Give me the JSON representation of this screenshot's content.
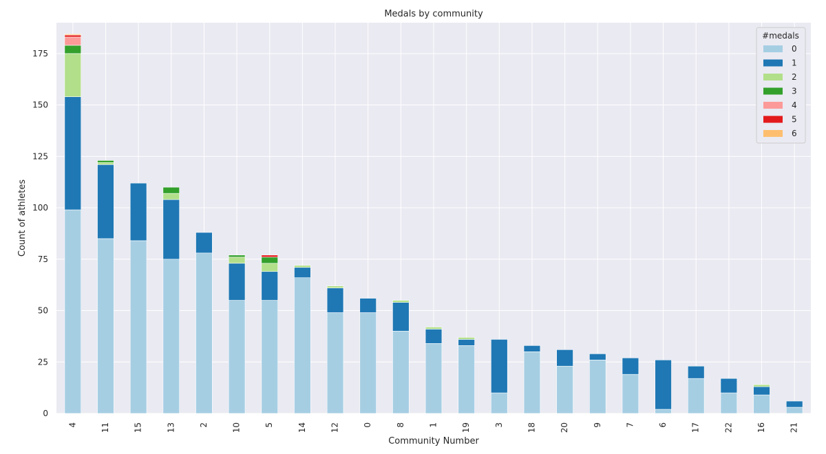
{
  "chart_data": {
    "type": "bar",
    "stacked": true,
    "title": "Medals by community",
    "xlabel": "Community Number",
    "ylabel": "Count of athletes",
    "ylim": [
      0,
      190
    ],
    "yticks": [
      0,
      25,
      50,
      75,
      100,
      125,
      150,
      175
    ],
    "grid": true,
    "legend": {
      "title": "#medals",
      "placement": "top-right"
    },
    "categories": [
      "4",
      "11",
      "15",
      "13",
      "2",
      "10",
      "5",
      "14",
      "12",
      "0",
      "8",
      "1",
      "19",
      "3",
      "18",
      "20",
      "9",
      "7",
      "6",
      "17",
      "22",
      "16",
      "21"
    ],
    "series": [
      {
        "name": "0",
        "color": "#a6cee3",
        "values": [
          99,
          85,
          84,
          75,
          78,
          55,
          55,
          66,
          49,
          49,
          40,
          34,
          33,
          10,
          30,
          23,
          26,
          19,
          2,
          17,
          10,
          9,
          3
        ]
      },
      {
        "name": "1",
        "color": "#1f78b4",
        "values": [
          55,
          36,
          28,
          29,
          10,
          18,
          14,
          5,
          12,
          7,
          14,
          7,
          3,
          26,
          3,
          8,
          3,
          8,
          24,
          6,
          7,
          4,
          3
        ]
      },
      {
        "name": "2",
        "color": "#b2df8a",
        "values": [
          21,
          1,
          0,
          3,
          0,
          3,
          4,
          1,
          1,
          0,
          1,
          1,
          1,
          0,
          0,
          0,
          0,
          0,
          0,
          0,
          0,
          1,
          0
        ]
      },
      {
        "name": "3",
        "color": "#33a02c",
        "values": [
          4,
          1,
          0,
          3,
          0,
          1,
          3,
          0,
          0,
          0,
          0,
          0,
          0,
          0,
          0,
          0,
          0,
          0,
          0,
          0,
          0,
          0,
          0
        ]
      },
      {
        "name": "4",
        "color": "#fb9a99",
        "values": [
          4,
          0,
          0,
          0,
          0,
          0,
          0,
          0,
          0,
          0,
          0,
          0,
          0,
          0,
          0,
          0,
          0,
          0,
          0,
          0,
          0,
          0,
          0
        ]
      },
      {
        "name": "5",
        "color": "#e31a1c",
        "values": [
          1,
          0,
          0,
          0,
          0,
          0,
          1,
          0,
          0,
          0,
          0,
          0,
          0,
          0,
          0,
          0,
          0,
          0,
          0,
          0,
          0,
          0,
          0
        ]
      },
      {
        "name": "6",
        "color": "#fdbf6f",
        "values": [
          0.5,
          0,
          0,
          0,
          0,
          0,
          0,
          0,
          0,
          0,
          0,
          0,
          0,
          0,
          0,
          0,
          0,
          0,
          0,
          0,
          0,
          0,
          0
        ]
      }
    ]
  }
}
